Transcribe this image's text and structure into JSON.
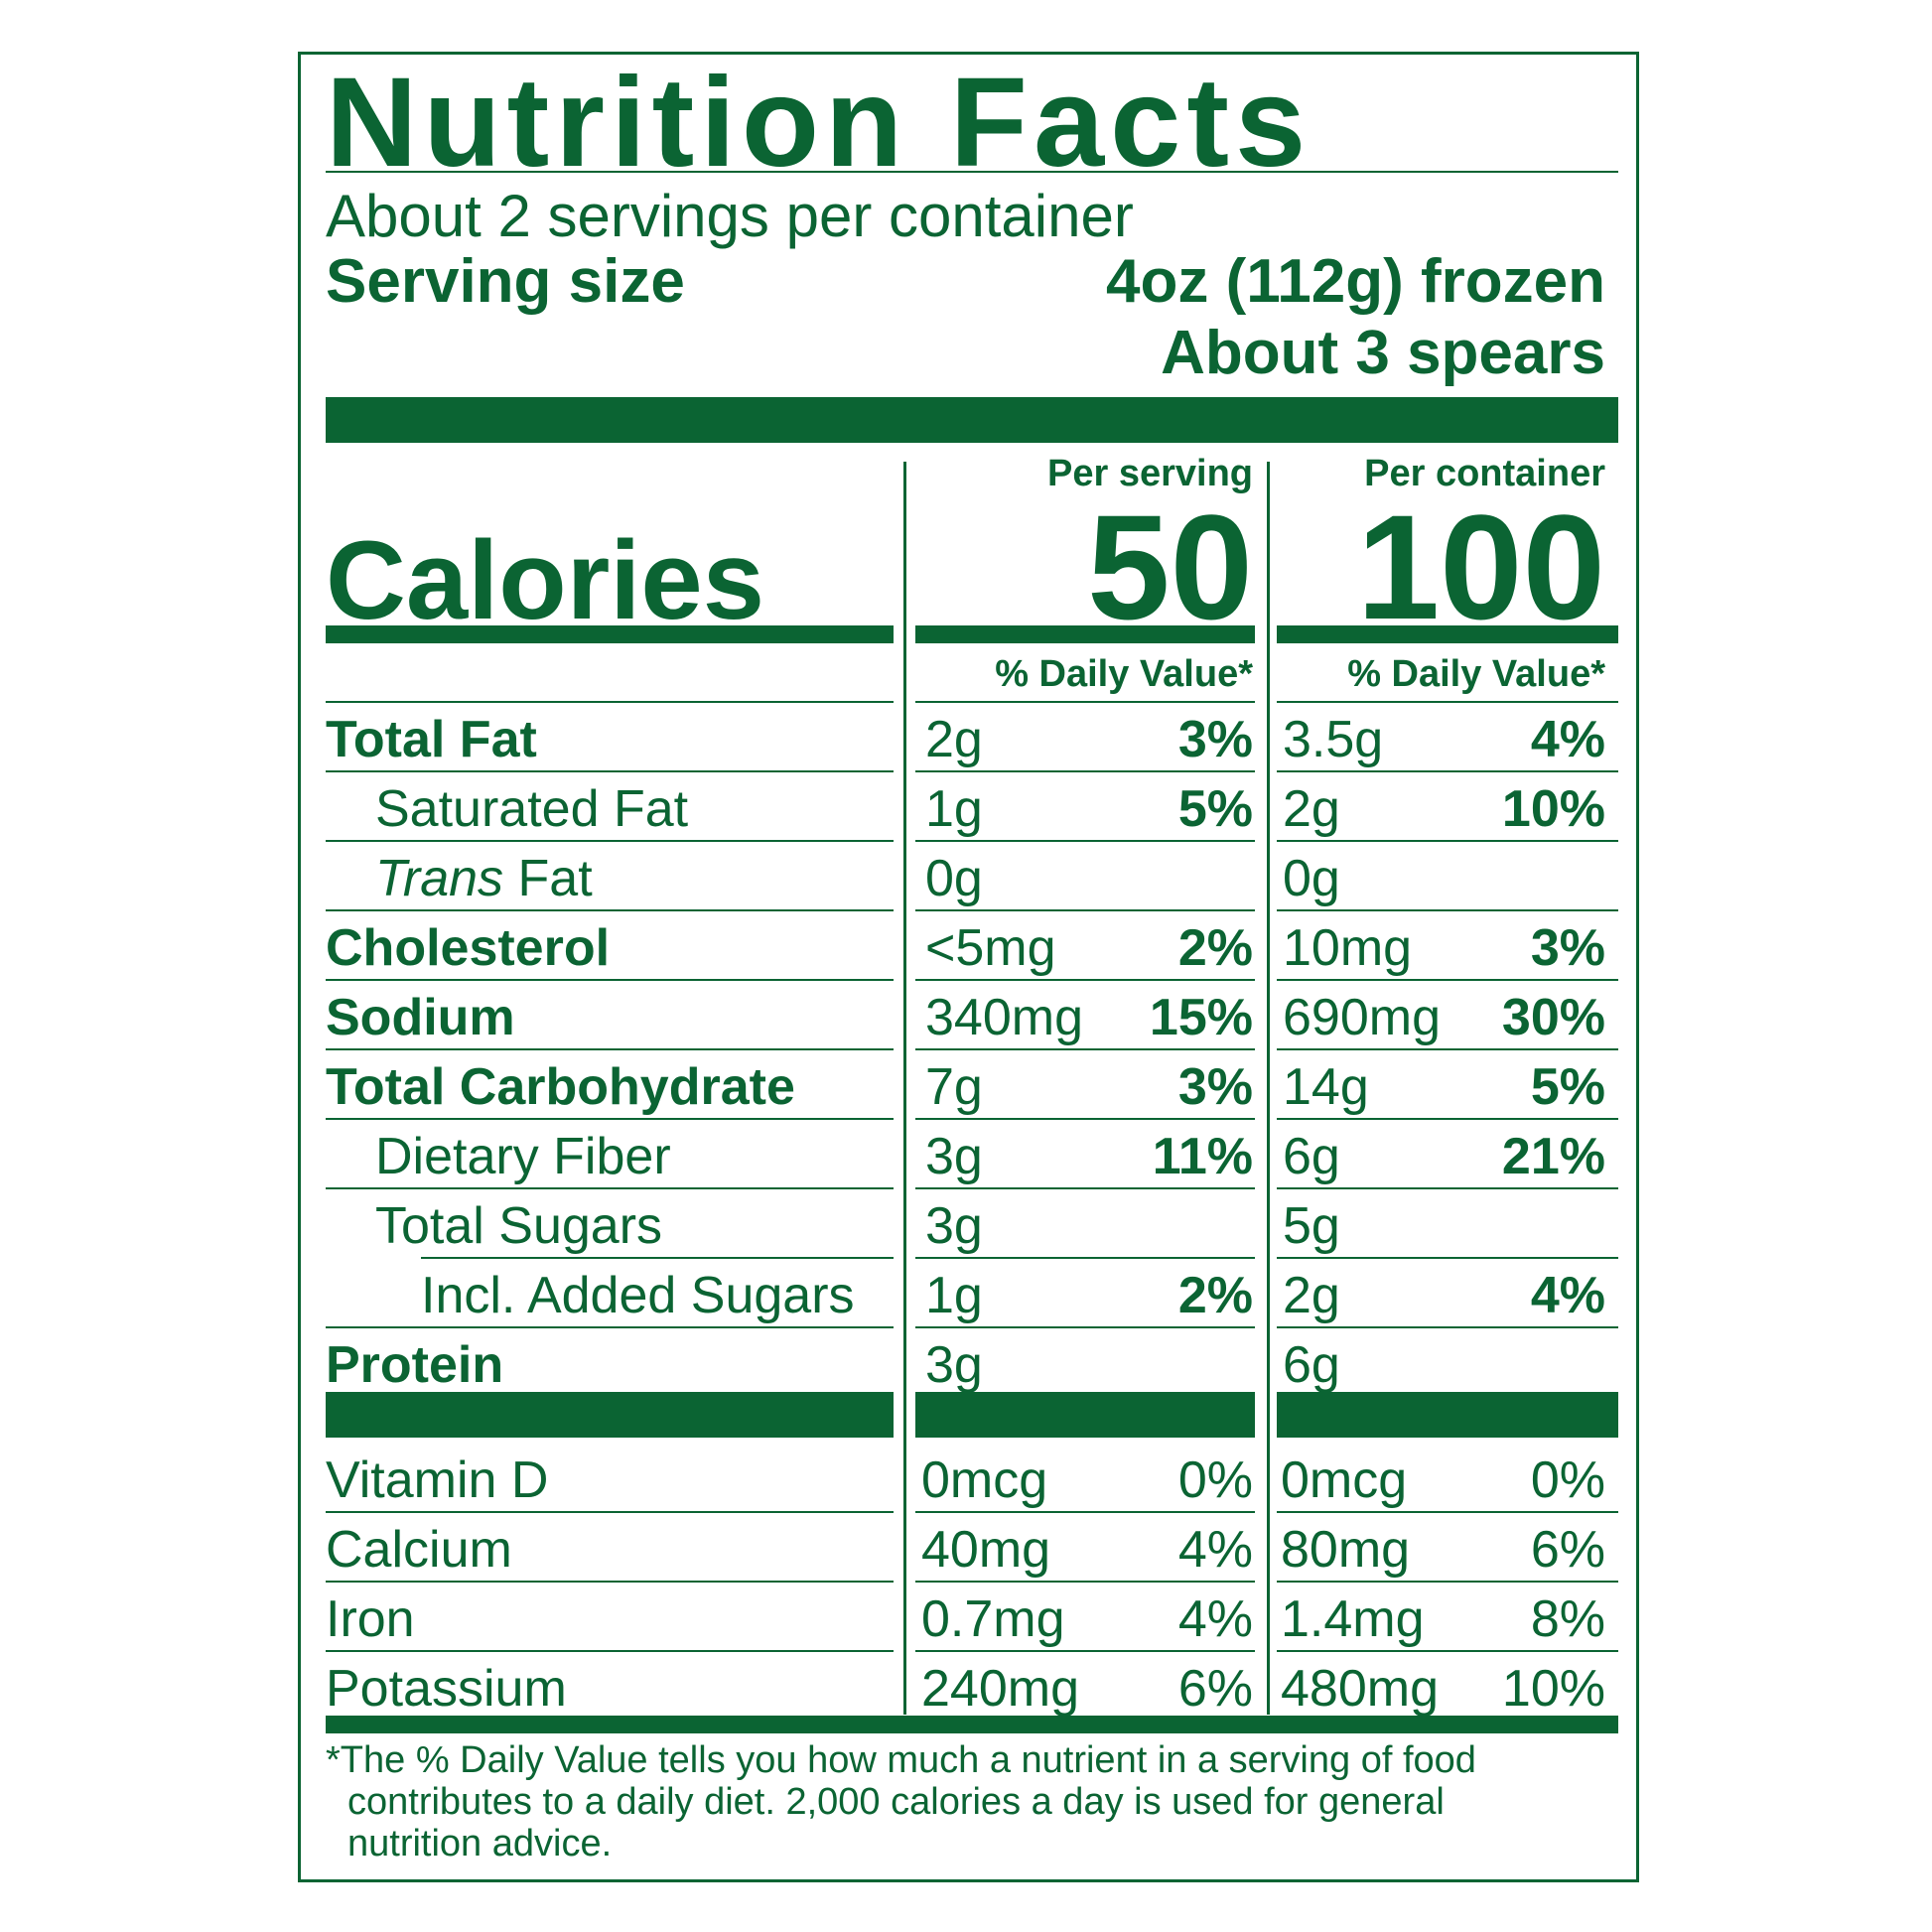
{
  "label": {
    "title": "Nutrition Facts",
    "servings_per_container": "About 2 servings per container",
    "serving_size_label": "Serving size",
    "serving_size_value_line1": "4oz (112g) frozen",
    "serving_size_value_line2": "About 3 spears",
    "per_serving_header": "Per serving",
    "per_container_header": "Per container",
    "calories_label": "Calories",
    "calories_per_serving": "50",
    "calories_per_container": "100",
    "daily_value_header": "% Daily Value*",
    "nutrients": [
      {
        "name": "Total Fat",
        "style": "bold",
        "serving_amount": "2g",
        "serving_dv": "3%",
        "container_amount": "3.5g",
        "container_dv": "4%"
      },
      {
        "name": "Saturated Fat",
        "style": "indent1",
        "serving_amount": "1g",
        "serving_dv": "5%",
        "container_amount": "2g",
        "container_dv": "10%"
      },
      {
        "name_italic": "Trans",
        "name": " Fat",
        "style": "indent1",
        "serving_amount": "0g",
        "serving_dv": "",
        "container_amount": "0g",
        "container_dv": ""
      },
      {
        "name": "Cholesterol",
        "style": "bold",
        "serving_amount": "<5mg",
        "serving_dv": "2%",
        "container_amount": "10mg",
        "container_dv": "3%"
      },
      {
        "name": "Sodium",
        "style": "bold",
        "serving_amount": "340mg",
        "serving_dv": "15%",
        "container_amount": "690mg",
        "container_dv": "30%"
      },
      {
        "name": "Total Carbohydrate",
        "style": "bold",
        "serving_amount": "7g",
        "serving_dv": "3%",
        "container_amount": "14g",
        "container_dv": "5%"
      },
      {
        "name": "Dietary Fiber",
        "style": "indent1",
        "serving_amount": "3g",
        "serving_dv": "11%",
        "container_amount": "6g",
        "container_dv": "21%"
      },
      {
        "name": "Total Sugars",
        "style": "indent1",
        "serving_amount": "3g",
        "serving_dv": "",
        "container_amount": "5g",
        "container_dv": ""
      },
      {
        "name": "Incl. Added Sugars",
        "style": "indent2",
        "serving_amount": "1g",
        "serving_dv": "2%",
        "container_amount": "2g",
        "container_dv": "4%"
      },
      {
        "name": "Protein",
        "style": "bold",
        "serving_amount": "3g",
        "serving_dv": "",
        "container_amount": "6g",
        "container_dv": ""
      }
    ],
    "vitamins": [
      {
        "name": "Vitamin D",
        "serving_amount": "0mcg",
        "serving_dv": "0%",
        "container_amount": "0mcg",
        "container_dv": "0%"
      },
      {
        "name": "Calcium",
        "serving_amount": "40mg",
        "serving_dv": "4%",
        "container_amount": "80mg",
        "container_dv": "6%"
      },
      {
        "name": "Iron",
        "serving_amount": "0.7mg",
        "serving_dv": "4%",
        "container_amount": "1.4mg",
        "container_dv": "8%"
      },
      {
        "name": "Potassium",
        "serving_amount": "240mg",
        "serving_dv": "6%",
        "container_amount": "480mg",
        "container_dv": "10%"
      }
    ],
    "footnote_line1": "*The % Daily Value tells you how much a nutrient in a serving of food",
    "footnote_line2": "contributes to a daily diet. 2,000 calories a day is used for general",
    "footnote_line3": "nutrition advice.",
    "color": "#0b6433"
  }
}
